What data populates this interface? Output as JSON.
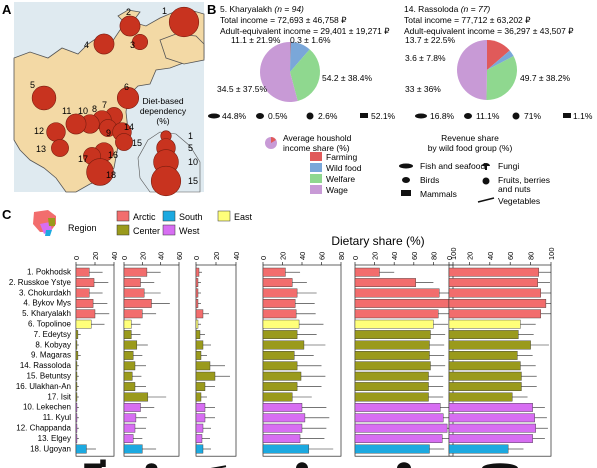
{
  "panels": {
    "a": "A",
    "b": "B",
    "c": "C"
  },
  "colors": {
    "land": "#f3d9a5",
    "sea": "#dfeaf0",
    "dot": "#c8331f",
    "farming": "#e05a5a",
    "wild": "#7aa7d9",
    "welfare": "#8fd88f",
    "wage": "#c89ad6",
    "arctic": "#f26d6d",
    "center": "#9a9a1c",
    "south": "#1ca9e0",
    "west": "#d76ef2",
    "east": "#ffff7a"
  },
  "map": {
    "legend_title": "Diet-based\ndependency\n(%)",
    "legend_values": [
      "1",
      "5",
      "10",
      "15"
    ],
    "sites": [
      {
        "id": "1",
        "dep": 15
      },
      {
        "id": "2",
        "dep": 6
      },
      {
        "id": "3",
        "dep": 3
      },
      {
        "id": "4",
        "dep": 6
      },
      {
        "id": "5",
        "dep": 9
      },
      {
        "id": "6",
        "dep": 7
      },
      {
        "id": "7",
        "dep": 4
      },
      {
        "id": "8",
        "dep": 5
      },
      {
        "id": "9",
        "dep": 4
      },
      {
        "id": "10",
        "dep": 5
      },
      {
        "id": "11",
        "dep": 6
      },
      {
        "id": "12",
        "dep": 5
      },
      {
        "id": "13",
        "dep": 4
      },
      {
        "id": "14",
        "dep": 5
      },
      {
        "id": "15",
        "dep": 4
      },
      {
        "id": "16",
        "dep": 5
      },
      {
        "id": "17",
        "dep": 4
      },
      {
        "id": "18",
        "dep": 12
      }
    ]
  },
  "villages": [
    {
      "title": "5. Kharyalakh",
      "n": "(n = 94)",
      "income": "Total income = 72,693 ± 46,758 ₽",
      "adult": "Adult-equivalent income = 29,401 ± 19,271 ₽",
      "pie": [
        {
          "cat": "Farming",
          "value": 0.3,
          "label": "0.3 ± 1.6%"
        },
        {
          "cat": "Wild food",
          "value": 11.1,
          "label": "11.1 ± 21.9%"
        },
        {
          "cat": "Welfare",
          "value": 34.5,
          "label": "34.5 ± 37.5%"
        },
        {
          "cat": "Wage",
          "value": 54.2,
          "label": "54.2 ± 38.4%"
        }
      ],
      "revenue": {
        "fish": "44.8%",
        "birds": "0.5%",
        "fruits": "2.6%",
        "mammals": "52.1%"
      }
    },
    {
      "title": "14. Rassoloda",
      "n": "(n = 77)",
      "income": "Total income = 77,712 ± 63,202 ₽",
      "adult": "Adult-equivalent income = 36,297 ± 43,507 ₽",
      "pie": [
        {
          "cat": "Farming",
          "value": 13.7,
          "label": "13.7 ± 22.5%"
        },
        {
          "cat": "Wild food",
          "value": 3.6,
          "label": "3.6 ± 7.8%"
        },
        {
          "cat": "Welfare",
          "value": 33,
          "label": "33 ± 36%"
        },
        {
          "cat": "Wage",
          "value": 49.7,
          "label": "49.7 ± 38.2%"
        }
      ],
      "revenue": {
        "fish": "16.8%",
        "birds": "11.1%",
        "fruits": "71%",
        "mammals": "1.1%"
      }
    }
  ],
  "income_legend": {
    "title": "Average houshold\nincome share (%)",
    "items": [
      "Farming",
      "Wild food",
      "Welfare",
      "Wage"
    ]
  },
  "revenue_legend": {
    "title": "Revenue share\nby wild food group (%)",
    "items": [
      "Fish and seafood",
      "Birds",
      "Mammals",
      "Fungi",
      "Fruits, berries\nand nuts",
      "Vegetables"
    ]
  },
  "chart_data": {
    "type": "bar",
    "title": "Dietary share (%)",
    "legend_title": "Region",
    "regions": [
      "Arctic",
      "South",
      "East",
      "Center",
      "West"
    ],
    "groups": [
      "Mammals",
      "Birds",
      "Vegetables",
      "Fruits, berries and nuts",
      "Fungi",
      "Fish and seafood"
    ],
    "xlim": [
      [
        0,
        40
      ],
      [
        0,
        60
      ],
      [
        0,
        40
      ],
      [
        0,
        80
      ],
      [
        0,
        100
      ],
      [
        0,
        100
      ]
    ],
    "ticks": [
      [
        "0",
        "20",
        "40"
      ],
      [
        "0",
        "20",
        "40",
        "60"
      ],
      [
        "0",
        "20",
        "40"
      ],
      [
        "0",
        "20",
        "40",
        "60",
        "80"
      ],
      [
        "0",
        "20",
        "40",
        "60",
        "80",
        "100"
      ],
      [
        "0",
        "20",
        "40",
        "60",
        "80",
        "100"
      ]
    ],
    "rows": [
      {
        "label": "1. Pokhodsk",
        "region": "Arctic",
        "values": [
          14,
          25,
          3,
          23,
          25,
          88
        ],
        "errors": [
          14,
          15,
          3,
          15,
          15,
          12
        ]
      },
      {
        "label": "2. Russkoe Ystye",
        "region": "Arctic",
        "values": [
          19,
          18,
          2,
          30,
          62,
          87
        ],
        "errors": [
          15,
          15,
          3,
          15,
          18,
          12
        ]
      },
      {
        "label": "3. Chokurdakh",
        "region": "Arctic",
        "values": [
          14,
          22,
          2,
          35,
          86,
          90
        ],
        "errors": [
          14,
          18,
          3,
          20,
          15,
          10
        ]
      },
      {
        "label": "4. Bykov Mys",
        "region": "Arctic",
        "values": [
          18,
          30,
          2,
          33,
          96,
          95
        ],
        "errors": [
          15,
          20,
          3,
          20,
          10,
          8
        ]
      },
      {
        "label": "5. Kharyalakh",
        "region": "Arctic",
        "values": [
          20,
          20,
          7,
          34,
          85,
          90
        ],
        "errors": [
          15,
          15,
          6,
          20,
          12,
          10
        ]
      },
      {
        "label": "6. Topolinoe",
        "region": "East",
        "values": [
          16,
          8,
          2,
          37,
          80,
          70
        ],
        "errors": [
          14,
          10,
          3,
          25,
          15,
          15
        ]
      },
      {
        "label": "7. Edeytsy",
        "region": "Center",
        "values": [
          2,
          8,
          4,
          35,
          77,
          68
        ],
        "errors": [
          3,
          10,
          5,
          20,
          15,
          15
        ]
      },
      {
        "label": "8. Kobyay",
        "region": "Center",
        "values": [
          1,
          14,
          7,
          42,
          76,
          80
        ],
        "errors": [
          2,
          12,
          8,
          22,
          15,
          18
        ]
      },
      {
        "label": "9. Magaras",
        "region": "Center",
        "values": [
          2,
          10,
          5,
          32,
          76,
          67
        ],
        "errors": [
          3,
          10,
          6,
          20,
          15,
          15
        ]
      },
      {
        "label": "14. Rassoloda",
        "region": "Center",
        "values": [
          1,
          12,
          14,
          35,
          77,
          70
        ],
        "errors": [
          2,
          12,
          15,
          25,
          15,
          15
        ]
      },
      {
        "label": "15. Betuntsy",
        "region": "Center",
        "values": [
          1,
          9,
          19,
          39,
          75,
          71
        ],
        "errors": [
          2,
          10,
          15,
          25,
          15,
          15
        ]
      },
      {
        "label": "16. Ulakhan-An",
        "region": "Center",
        "values": [
          1,
          12,
          9,
          35,
          75,
          71
        ],
        "errors": [
          2,
          12,
          10,
          25,
          15,
          15
        ]
      },
      {
        "label": "17. Isit",
        "region": "Center",
        "values": [
          1,
          26,
          5,
          30,
          75,
          62
        ],
        "errors": [
          2,
          20,
          6,
          20,
          15,
          15
        ]
      },
      {
        "label": "10. Lekechen",
        "region": "West",
        "values": [
          1,
          18,
          9,
          40,
          87,
          82
        ],
        "errors": [
          2,
          15,
          10,
          25,
          12,
          12
        ]
      },
      {
        "label": "11. Kyul",
        "region": "West",
        "values": [
          1,
          13,
          9,
          43,
          90,
          84
        ],
        "errors": [
          2,
          12,
          10,
          25,
          10,
          12
        ]
      },
      {
        "label": "12. Chappanda",
        "region": "West",
        "values": [
          1,
          12,
          7,
          40,
          94,
          85
        ],
        "errors": [
          2,
          12,
          8,
          25,
          8,
          12
        ]
      },
      {
        "label": "13. Elgey",
        "region": "West",
        "values": [
          1,
          10,
          6,
          38,
          89,
          82
        ],
        "errors": [
          2,
          10,
          8,
          25,
          10,
          12
        ]
      },
      {
        "label": "18. Ugoyan",
        "region": "South",
        "values": [
          11,
          20,
          7,
          47,
          76,
          58
        ],
        "errors": [
          10,
          15,
          8,
          25,
          15,
          15
        ]
      }
    ]
  }
}
